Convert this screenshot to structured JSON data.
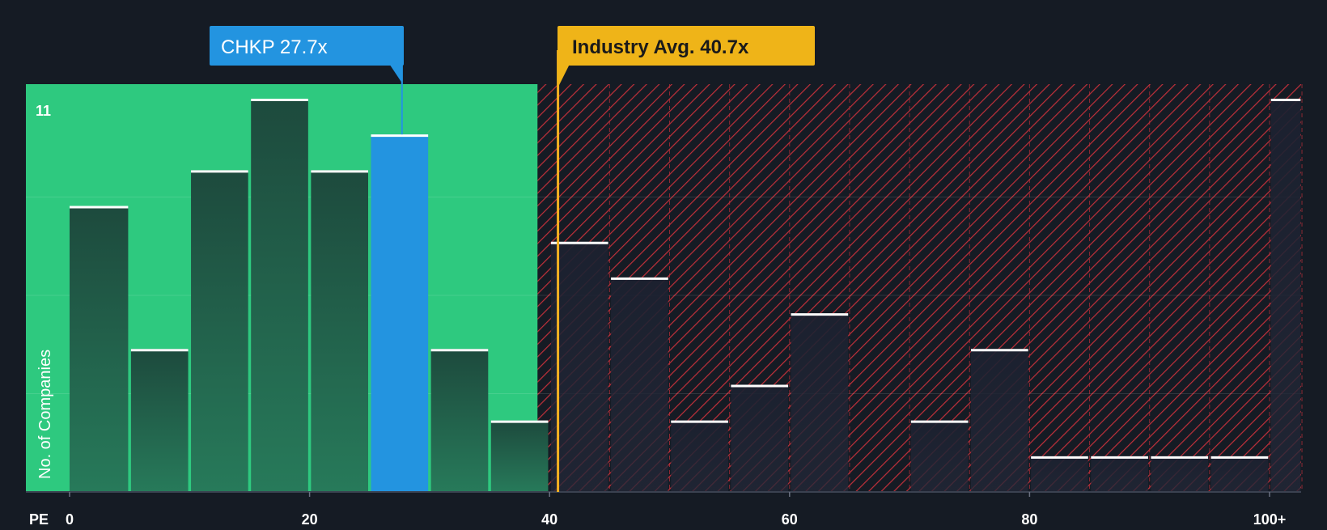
{
  "chart_data": {
    "type": "bar",
    "xlabel": "PE",
    "ylabel": "No. of Companies",
    "x_tick_labels": [
      "0",
      "20",
      "40",
      "60",
      "80",
      "100+"
    ],
    "x_ticks": [
      0,
      20,
      40,
      60,
      80,
      100
    ],
    "y_top_label": "11",
    "ylim": [
      0,
      11.5
    ],
    "xlim": [
      -3.5,
      102.7
    ],
    "bin_width": 5,
    "bins": [
      {
        "x0": 0,
        "x1": 5,
        "value": 8
      },
      {
        "x0": 5,
        "x1": 10,
        "value": 4
      },
      {
        "x0": 10,
        "x1": 15,
        "value": 9
      },
      {
        "x0": 15,
        "x1": 20,
        "value": 11
      },
      {
        "x0": 20,
        "x1": 25,
        "value": 9
      },
      {
        "x0": 25,
        "x1": 30,
        "value": 10,
        "highlight": true
      },
      {
        "x0": 30,
        "x1": 35,
        "value": 4
      },
      {
        "x0": 35,
        "x1": 40,
        "value": 2
      },
      {
        "x0": 40,
        "x1": 45,
        "value": 7
      },
      {
        "x0": 45,
        "x1": 50,
        "value": 6
      },
      {
        "x0": 50,
        "x1": 55,
        "value": 2
      },
      {
        "x0": 55,
        "x1": 60,
        "value": 3
      },
      {
        "x0": 60,
        "x1": 65,
        "value": 5
      },
      {
        "x0": 65,
        "x1": 70,
        "value": 0
      },
      {
        "x0": 70,
        "x1": 75,
        "value": 2
      },
      {
        "x0": 75,
        "x1": 80,
        "value": 4
      },
      {
        "x0": 80,
        "x1": 85,
        "value": 1
      },
      {
        "x0": 85,
        "x1": 90,
        "value": 1
      },
      {
        "x0": 90,
        "x1": 95,
        "value": 1
      },
      {
        "x0": 95,
        "x1": 100,
        "value": 1
      },
      {
        "x0": 100,
        "x1": 102.7,
        "value": 11
      }
    ],
    "company": {
      "label": "CHKP 27.7x",
      "value": 27.7
    },
    "industry_avg": {
      "label": "Industry Avg. 40.7x",
      "value": 40.7
    },
    "undervalued_until": 39
  },
  "colors": {
    "background": "#151b24",
    "green_zone": "#2ec97f",
    "green_bar": "#1e4a3e",
    "highlight_bar": "#2394e0",
    "hatch": "#c0303a",
    "dark_bar": "#1d2230",
    "company_label_bg": "#2394e0",
    "industry_label_bg": "#efb418",
    "industry_line": "#f5b121",
    "cap": "#ffffff",
    "text": "#ffffff",
    "industry_text": "#1a1a1a"
  }
}
